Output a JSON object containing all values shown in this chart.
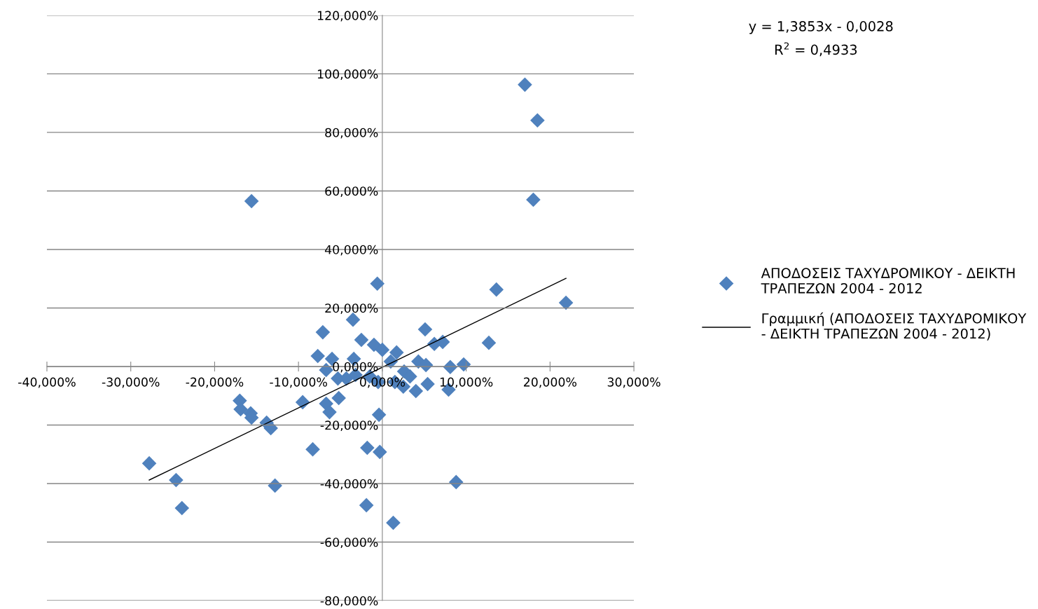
{
  "chart_data": {
    "type": "scatter",
    "xlim": [
      -40,
      30
    ],
    "ylim": [
      -80,
      120
    ],
    "xticks": [
      {
        "value": -40,
        "label": "-40,000%"
      },
      {
        "value": -30,
        "label": "-30,000%"
      },
      {
        "value": -20,
        "label": "-20,000%"
      },
      {
        "value": -10,
        "label": "-10,000%"
      },
      {
        "value": 0,
        "label": "0,000%"
      },
      {
        "value": 10,
        "label": "10,000%"
      },
      {
        "value": 20,
        "label": "20,000%"
      },
      {
        "value": 30,
        "label": "30,000%"
      }
    ],
    "yticks": [
      {
        "value": -80,
        "label": "-80,000%"
      },
      {
        "value": -60,
        "label": "-60,000%"
      },
      {
        "value": -40,
        "label": "-40,000%"
      },
      {
        "value": -20,
        "label": "-20,000%"
      },
      {
        "value": 0,
        "label": "0,000%"
      },
      {
        "value": 20,
        "label": "20,000%"
      },
      {
        "value": 40,
        "label": "40,000%"
      },
      {
        "value": 60,
        "label": "60,000%"
      },
      {
        "value": 80,
        "label": "80,000%"
      },
      {
        "value": 100,
        "label": "100,000%"
      },
      {
        "value": 120,
        "label": "120,000%"
      }
    ],
    "grid": "y",
    "legend": "right",
    "marker": "diamond",
    "annotations": [
      "y = 1,3853x - 0,0028",
      "R$^{2}$ = 0,4933"
    ],
    "series": [
      {
        "name": "ΑΠΟΔΟΣΕΙΣ ΤΑΧΥΔΡΟΜΙΚΟΥ - ΔΕΙΚΤΗ\nΤΡΑΠΕΖΩΝ 2004 - 2012",
        "color": "#4f81bd",
        "x": [
          17.0,
          18.5,
          18.0,
          -15.6,
          13.6,
          21.9,
          -0.6,
          -3.5,
          -7.1,
          5.1,
          -2.5,
          12.7,
          -1.0,
          0.0,
          6.2,
          7.2,
          1.7,
          -7.7,
          -6.0,
          -3.4,
          1.0,
          4.3,
          8.1,
          9.7,
          -6.7,
          -5.3,
          -4.3,
          -3.2,
          -1.5,
          -0.5,
          1.5,
          2.6,
          3.3,
          5.2,
          5.4,
          4.0,
          7.9,
          2.5,
          -9.5,
          -6.7,
          -6.3,
          -5.2,
          -17.0,
          -16.9,
          -15.7,
          -15.6,
          -0.4,
          -13.8,
          -13.3,
          -8.3,
          -1.8,
          -0.3,
          8.8,
          -12.8,
          -1.9,
          1.3,
          -27.8,
          -24.6,
          -23.9
        ],
        "values": [
          96.3,
          84.1,
          57.0,
          56.5,
          26.3,
          21.8,
          28.3,
          16.0,
          11.7,
          12.7,
          9.1,
          8.1,
          7.4,
          5.7,
          7.7,
          8.4,
          4.8,
          3.6,
          2.6,
          2.6,
          1.7,
          1.7,
          -0.2,
          0.7,
          -1.2,
          -4.1,
          -4.1,
          -2.9,
          -3.4,
          -5.3,
          -5.3,
          -1.7,
          -3.4,
          0.5,
          -6.0,
          -8.4,
          -7.9,
          -6.9,
          -12.2,
          -12.7,
          -15.6,
          -10.8,
          -11.7,
          -14.6,
          -16.0,
          -17.5,
          -16.5,
          -19.2,
          -21.1,
          -28.3,
          -27.8,
          -29.2,
          -39.5,
          -40.7,
          -47.4,
          -53.4,
          -33.1,
          -38.8,
          -48.4
        ]
      },
      {
        "name": "Γραμμική (ΑΠΟΔΟΣΕΙΣ ΤΑΧΥΔΡΟΜΙΚΟΥ\n- ΔΕΙΚΤΗ ΤΡΑΠΕΖΩΝ 2004 - 2012)",
        "type": "line",
        "color": "#000000",
        "line_style": "solid",
        "marker": "none",
        "x": [
          -27.8,
          21.9
        ],
        "values": [
          -38.8,
          30.1
        ]
      }
    ]
  }
}
